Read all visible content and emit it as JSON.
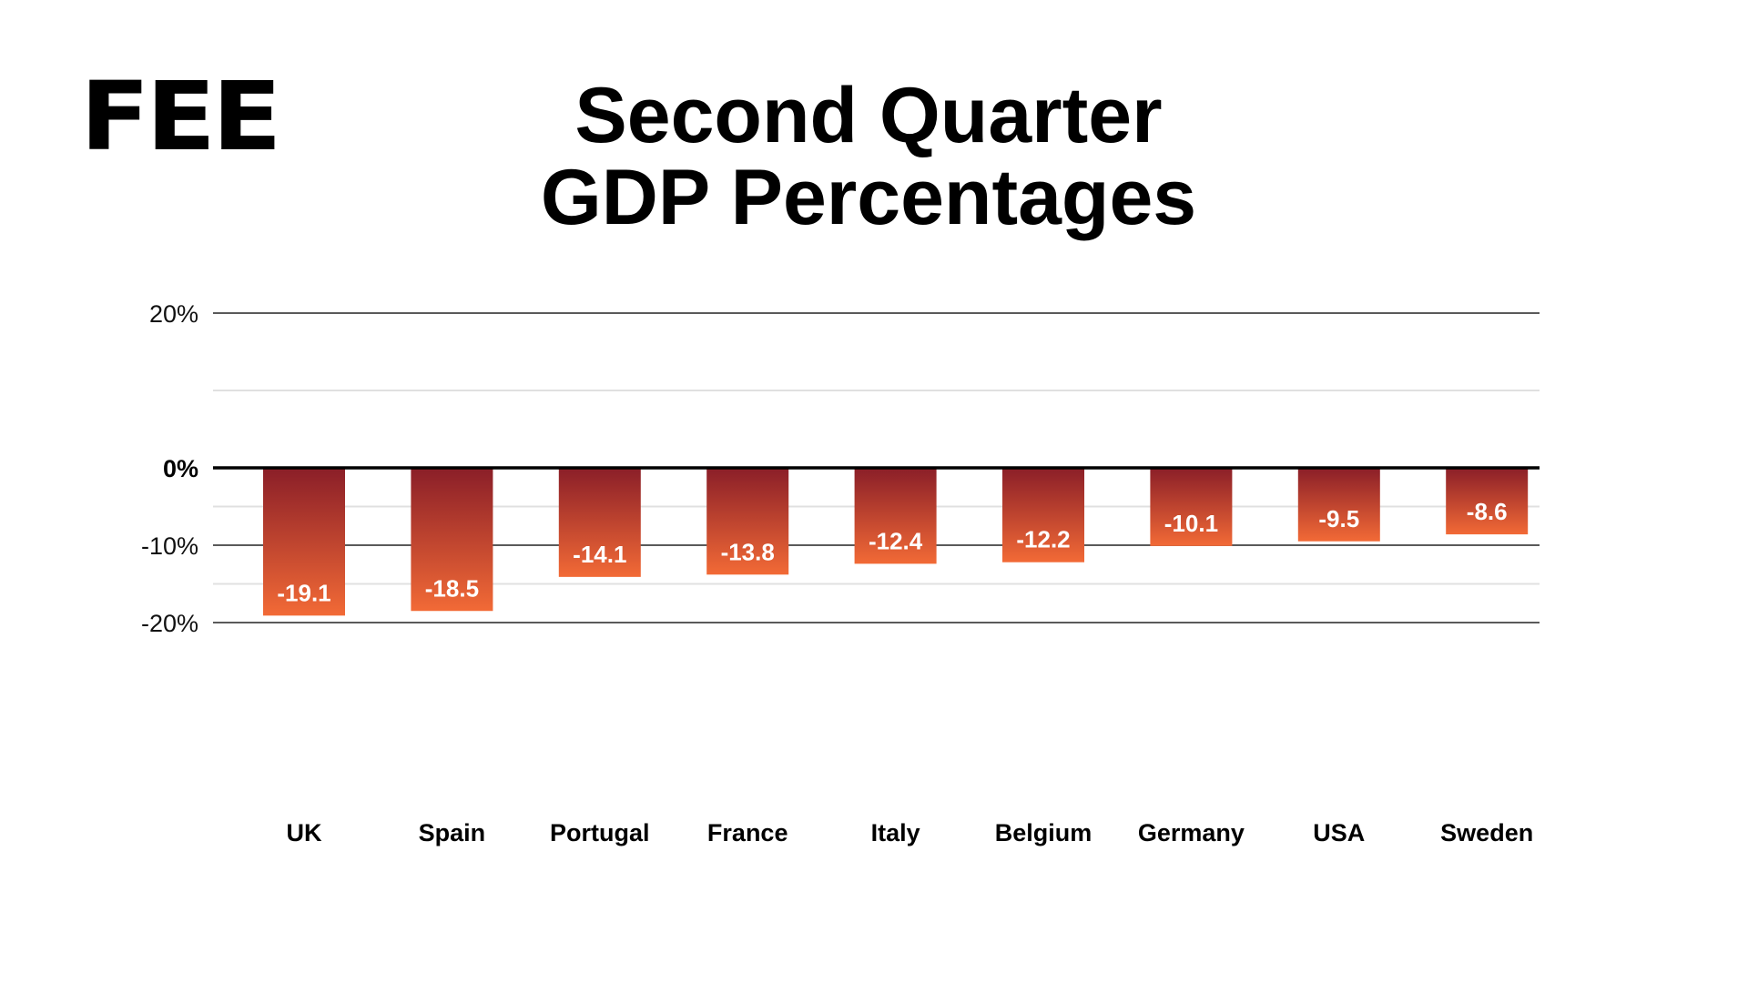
{
  "logo": {
    "text": "FEE"
  },
  "header": {
    "title_line1": "Second Quarter",
    "title_line2": "GDP Percentages"
  },
  "colors": {
    "bar_top": "#8A1E28",
    "bar_bottom": "#F26A36",
    "major_grid": "#5a5a5a",
    "minor_grid": "#e0e0e0",
    "zero_line": "#000000",
    "data_label": "#ffffff"
  },
  "chart_data": {
    "type": "bar",
    "title": "Second Quarter GDP Percentages",
    "xlabel": "",
    "ylabel": "",
    "categories": [
      "UK",
      "Spain",
      "Portugal",
      "France",
      "Italy",
      "Belgium",
      "Germany",
      "USA",
      "Sweden"
    ],
    "values": [
      -19.1,
      -18.5,
      -14.1,
      -13.8,
      -12.4,
      -12.2,
      -10.1,
      -9.5,
      -8.6
    ],
    "data_labels": [
      "-19.1",
      "-18.5",
      "-14.1",
      "-13.8",
      "-12.4",
      "-12.2",
      "-10.1",
      "-9.5",
      "-8.6"
    ],
    "ylim": [
      -20,
      20
    ],
    "yticks": [
      20,
      0,
      -10,
      -20
    ],
    "ytick_labels": [
      "20%",
      "0%",
      "-10%",
      "-20%"
    ],
    "minor_gridlines": [
      10,
      -5,
      -15
    ],
    "grid": true,
    "legend": "none",
    "bar_fill": "vertical gradient dark red to orange"
  }
}
